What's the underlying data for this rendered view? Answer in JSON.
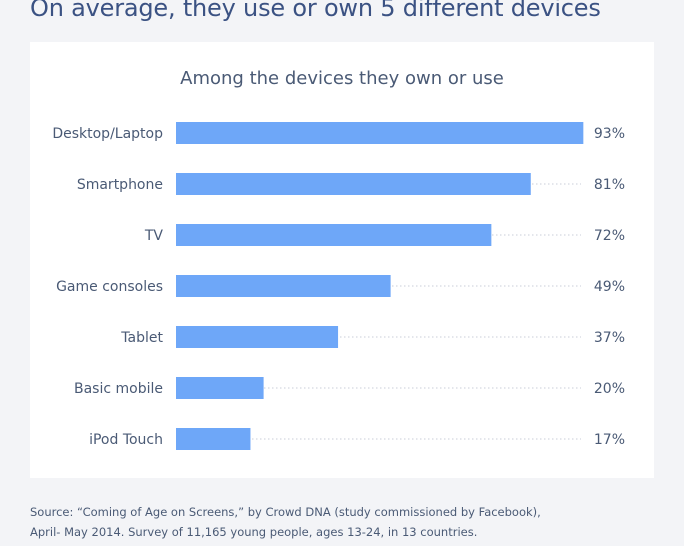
{
  "headline": "On average, they use or own 5 different devices",
  "source": {
    "line1": "Source: “Coming of Age on Screens,” by Crowd DNA (study commissioned by Facebook),",
    "line2": "April- May 2014. Survey of 11,165 young people, ages 13-24, in 13 countries."
  },
  "colors": {
    "bar": "#6ea7f8",
    "headline": "#3b5283",
    "text": "#4a5a75",
    "card": "#ffffff",
    "background": "#f3f4f7"
  },
  "chart_data": {
    "type": "bar",
    "orientation": "horizontal",
    "title": "Among the devices they own or use",
    "categories": [
      "Desktop/Laptop",
      "Smartphone",
      "TV",
      "Game consoles",
      "Tablet",
      "Basic mobile",
      "iPod Touch"
    ],
    "values": [
      93,
      81,
      72,
      49,
      37,
      20,
      17
    ],
    "value_labels": [
      "93%",
      "81%",
      "72%",
      "49%",
      "37%",
      "20%",
      "17%"
    ],
    "unit": "%",
    "xlim": [
      0,
      100
    ],
    "grid": false,
    "legend": "none"
  }
}
